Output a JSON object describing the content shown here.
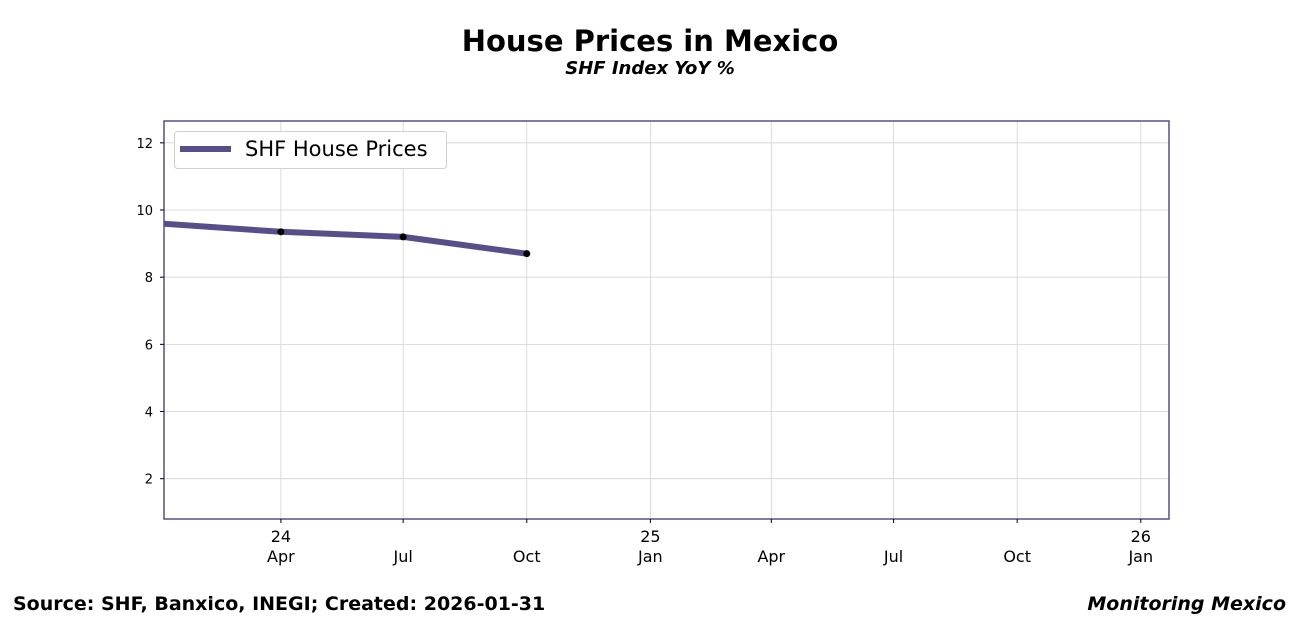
{
  "header": {
    "title": "House Prices in Mexico",
    "subtitle": "SHF Index YoY %"
  },
  "footer": {
    "source": "Source: SHF, Banxico, INEGI; Created: 2026-01-31",
    "brand": "Monitoring Mexico"
  },
  "colors": {
    "series": "#574f89",
    "frame": "#574f89",
    "grid": "#d3d3d3",
    "marker": "#000000"
  },
  "chart_data": {
    "type": "line",
    "title": "House Prices in Mexico",
    "subtitle": "SHF Index YoY %",
    "xlabel": "",
    "ylabel": "",
    "x_range": [
      "2024-01-05",
      "2026-01-22"
    ],
    "ylim": [
      0.8,
      12.65
    ],
    "y_ticks": [
      2,
      4,
      6,
      8,
      10,
      12
    ],
    "x_ticks": [
      {
        "date": "2024-04-01",
        "label": "Apr",
        "year": "24"
      },
      {
        "date": "2024-07-01",
        "label": "Jul",
        "year": ""
      },
      {
        "date": "2024-10-01",
        "label": "Oct",
        "year": ""
      },
      {
        "date": "2025-01-01",
        "label": "Jan",
        "year": "25"
      },
      {
        "date": "2025-04-01",
        "label": "Apr",
        "year": ""
      },
      {
        "date": "2025-07-01",
        "label": "Jul",
        "year": ""
      },
      {
        "date": "2025-10-01",
        "label": "Oct",
        "year": ""
      },
      {
        "date": "2026-01-01",
        "label": "Jan",
        "year": "26"
      }
    ],
    "grid": true,
    "legend": {
      "position": "top-left",
      "entries": [
        "SHF House Prices"
      ]
    },
    "series": [
      {
        "name": "SHF House Prices",
        "points": [
          {
            "x": "2024-01-01",
            "y": 9.6,
            "marker": false
          },
          {
            "x": "2024-04-01",
            "y": 9.35,
            "marker": true
          },
          {
            "x": "2024-07-01",
            "y": 9.2,
            "marker": true
          },
          {
            "x": "2024-10-01",
            "y": 8.7,
            "marker": true
          }
        ]
      }
    ]
  }
}
